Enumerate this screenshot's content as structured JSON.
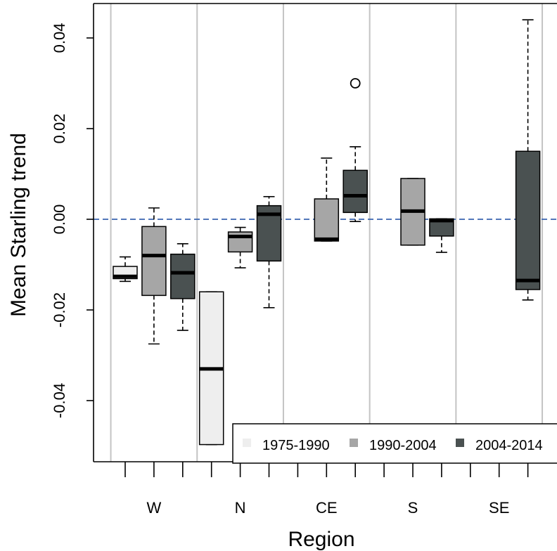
{
  "chart_data": {
    "type": "boxplot",
    "xlabel": "Region",
    "ylabel": "Mean Starling trend",
    "categories": [
      "W",
      "N",
      "CE",
      "S",
      "SE"
    ],
    "ylim": [
      -0.052,
      0.047
    ],
    "yticks": [
      {
        "value": -0.04,
        "label": "-0.04"
      },
      {
        "value": -0.02,
        "label": "-0.02"
      },
      {
        "value": 0.0,
        "label": "0.00"
      },
      {
        "value": 0.02,
        "label": "0.02"
      },
      {
        "value": 0.04,
        "label": "0.04"
      }
    ],
    "reference_line": {
      "y": 0.0,
      "color": "#3a66b0",
      "style": "dashed"
    },
    "grid": "vertical",
    "legend_position": "bottom-right",
    "series": [
      {
        "name": "1975-1990",
        "color": "#eeeeee"
      },
      {
        "name": "1990-2004",
        "color": "#a6a6a6"
      },
      {
        "name": "2004-2014",
        "color": "#4a5151"
      }
    ],
    "boxes": [
      {
        "region": "W",
        "series": 0,
        "whisker_low": -0.0137,
        "q1": -0.0131,
        "median": -0.0126,
        "q3": -0.0104,
        "whisker_high": -0.0083,
        "outliers": []
      },
      {
        "region": "W",
        "series": 1,
        "whisker_low": -0.0275,
        "q1": -0.0168,
        "median": -0.008,
        "q3": -0.0016,
        "whisker_high": 0.0025,
        "outliers": []
      },
      {
        "region": "W",
        "series": 2,
        "whisker_low": -0.0245,
        "q1": -0.0175,
        "median": -0.0118,
        "q3": -0.0077,
        "whisker_high": -0.0054,
        "outliers": []
      },
      {
        "region": "N",
        "series": 0,
        "whisker_low": -0.0497,
        "q1": -0.0497,
        "median": -0.033,
        "q3": -0.016,
        "whisker_high": -0.016,
        "outliers": []
      },
      {
        "region": "N",
        "series": 1,
        "whisker_low": -0.0107,
        "q1": -0.0072,
        "median": -0.0038,
        "q3": -0.0028,
        "whisker_high": -0.0018,
        "outliers": []
      },
      {
        "region": "N",
        "series": 2,
        "whisker_low": -0.0195,
        "q1": -0.0092,
        "median": 0.0011,
        "q3": 0.003,
        "whisker_high": 0.005,
        "outliers": []
      },
      {
        "region": "CE",
        "series": 1,
        "whisker_low": -0.0048,
        "q1": -0.0048,
        "median": -0.0044,
        "q3": 0.0045,
        "whisker_high": 0.0135,
        "outliers": []
      },
      {
        "region": "CE",
        "series": 2,
        "whisker_low": -0.0005,
        "q1": 0.0015,
        "median": 0.0052,
        "q3": 0.0108,
        "whisker_high": 0.016,
        "outliers": [
          0.03
        ]
      },
      {
        "region": "S",
        "series": 1,
        "whisker_low": -0.0057,
        "q1": -0.0057,
        "median": 0.0018,
        "q3": 0.009,
        "whisker_high": 0.009,
        "outliers": []
      },
      {
        "region": "S",
        "series": 2,
        "whisker_low": -0.0073,
        "q1": -0.0037,
        "median": -0.0003,
        "q3": 0.0001,
        "whisker_high": 0.0001,
        "outliers": []
      },
      {
        "region": "SE",
        "series": 2,
        "whisker_low": -0.0178,
        "q1": -0.0155,
        "median": -0.0135,
        "q3": 0.015,
        "whisker_high": 0.044,
        "outliers": []
      }
    ]
  }
}
